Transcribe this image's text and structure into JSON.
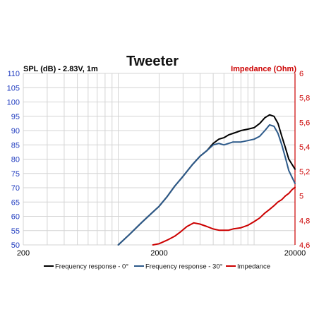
{
  "chart_data": {
    "type": "line",
    "title": "Tweeter",
    "left_axis": {
      "label": "SPL (dB) - 2.83V, 1m",
      "min": 50,
      "max": 110,
      "step": 5,
      "ticks": [
        "50",
        "55",
        "60",
        "65",
        "70",
        "75",
        "80",
        "85",
        "90",
        "95",
        "100",
        "105",
        "110"
      ],
      "color": "#1f3bbf"
    },
    "right_axis": {
      "label": "Impedance (Ohm)",
      "min": 4.6,
      "max": 6.0,
      "step": 0.2,
      "ticks": [
        "4,6",
        "4,8",
        "5",
        "5,2",
        "5,4",
        "5,6",
        "5,8",
        "6"
      ],
      "color": "#cc0000"
    },
    "x_axis": {
      "scale": "log",
      "min": 200,
      "max": 20000,
      "ticks": [
        "200",
        "2000",
        "20000"
      ],
      "grid_values": [
        200,
        300,
        400,
        500,
        600,
        700,
        800,
        900,
        1000,
        2000,
        3000,
        4000,
        5000,
        6000,
        7000,
        8000,
        9000,
        10000,
        20000
      ]
    },
    "grid": true,
    "legend_position": "bottom",
    "series": [
      {
        "name": "Frequency response - 0°",
        "axis": "left",
        "color": "#000000",
        "x": [
          1000,
          1200,
          1500,
          1800,
          2000,
          2300,
          2600,
          3000,
          3500,
          4000,
          4500,
          5000,
          5500,
          6000,
          6500,
          7000,
          7500,
          8000,
          9000,
          10000,
          11000,
          12000,
          13000,
          14000,
          15000,
          16000,
          17000,
          18000,
          20000
        ],
        "y": [
          50,
          53.5,
          58,
          61.5,
          63.5,
          67,
          70.5,
          74,
          78,
          81,
          83,
          85.5,
          87,
          87.5,
          88.5,
          89,
          89.5,
          90,
          90.5,
          91,
          92.5,
          94.5,
          95.5,
          95,
          92.5,
          88,
          84,
          80,
          76.5
        ]
      },
      {
        "name": "Frequency response - 30°",
        "axis": "left",
        "color": "#2d5a8a",
        "x": [
          1000,
          1200,
          1500,
          1800,
          2000,
          2300,
          2600,
          3000,
          3500,
          4000,
          4500,
          5000,
          5500,
          6000,
          6500,
          7000,
          7500,
          8000,
          9000,
          10000,
          11000,
          12000,
          13000,
          14000,
          15000,
          16000,
          17000,
          18000,
          20000
        ],
        "y": [
          50,
          53.5,
          58,
          61.5,
          63.5,
          67,
          70.5,
          74,
          78,
          81,
          83,
          85,
          85.5,
          85,
          85.5,
          86,
          86,
          86,
          86.5,
          87,
          88,
          90,
          92,
          91.5,
          89,
          85,
          80.5,
          76,
          71.5
        ]
      },
      {
        "name": "Impedance",
        "axis": "right",
        "color": "#cc0000",
        "x": [
          1800,
          2000,
          2300,
          2600,
          2900,
          3200,
          3600,
          4000,
          4500,
          5000,
          5500,
          6000,
          6500,
          7000,
          8000,
          9000,
          10000,
          11000,
          12000,
          13000,
          14000,
          15000,
          16000,
          17000,
          18000,
          19000,
          20000
        ],
        "y": [
          4.6,
          4.61,
          4.64,
          4.67,
          4.71,
          4.75,
          4.78,
          4.77,
          4.75,
          4.73,
          4.72,
          4.72,
          4.72,
          4.73,
          4.74,
          4.76,
          4.79,
          4.82,
          4.86,
          4.89,
          4.92,
          4.95,
          4.97,
          5.0,
          5.02,
          5.05,
          5.07
        ]
      }
    ]
  }
}
